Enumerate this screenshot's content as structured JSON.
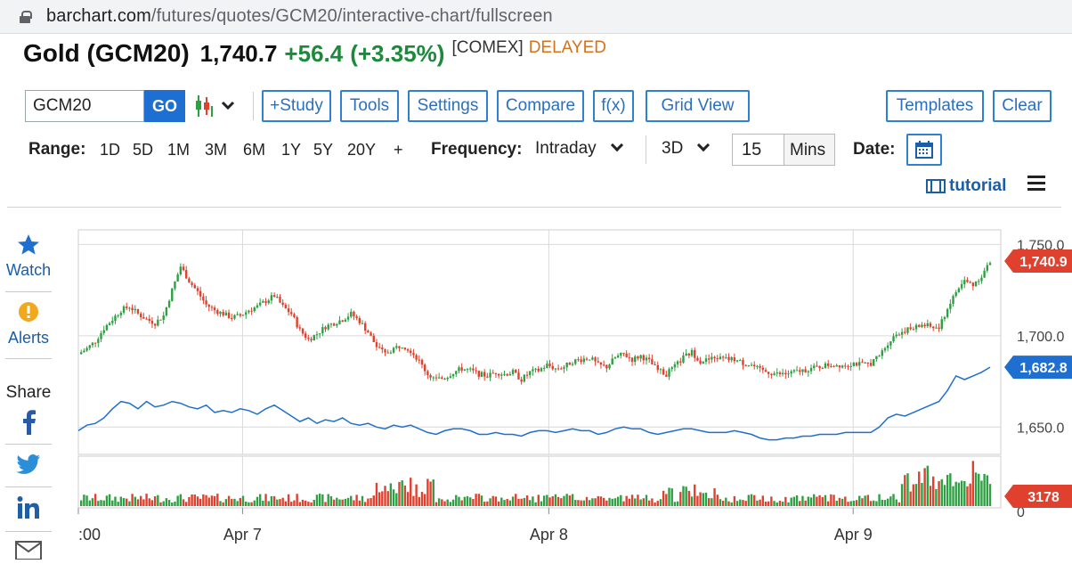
{
  "browser": {
    "url_host": "barchart.com",
    "url_path": "/futures/quotes/GCM20/interactive-chart/fullscreen"
  },
  "header": {
    "title": "Gold (GCM20)",
    "last": "1,740.7",
    "change": "+56.4",
    "percent": "(+3.35%)",
    "exchange": "[COMEX]",
    "status": "DELAYED"
  },
  "toolbar": {
    "symbol_value": "GCM20",
    "go_label": "GO",
    "buttons": [
      "+Study",
      "Tools",
      "Settings",
      "Compare",
      "f(x)",
      "Grid View",
      "Templates",
      "Clear"
    ]
  },
  "rangebar": {
    "range_label": "Range:",
    "ranges": [
      "1D",
      "5D",
      "1M",
      "3M",
      "6M",
      "1Y",
      "5Y",
      "20Y",
      "+"
    ],
    "frequency_label": "Frequency:",
    "frequency_value": "Intraday",
    "period_value": "3D",
    "interval_value": "15",
    "interval_unit": "Mins",
    "date_label": "Date:"
  },
  "tutorial_label": "tutorial",
  "sidebar": {
    "watch_label": "Watch",
    "alerts_label": "Alerts",
    "share_label": "Share"
  },
  "colors": {
    "up": "#2ea043",
    "down": "#e0412e",
    "line": "#1f6fd1",
    "accent": "#2f7fd3"
  },
  "chart_data": {
    "type": "candlestick",
    "x_tick_labels": [
      ":00",
      "Apr 7",
      "Apr 8",
      "Apr 9"
    ],
    "y_tick_labels": [
      "1,750.0",
      "1,700.0",
      "1,650.0"
    ],
    "ylim": [
      1635,
      1758
    ],
    "price_badge": "1,740.9",
    "compare_badge": "1,682.8",
    "volume_badge": "3178",
    "volume_axis_label": "0",
    "price_path": [
      [
        0,
        1690
      ],
      [
        3,
        1693
      ],
      [
        6,
        1697
      ],
      [
        9,
        1704
      ],
      [
        12,
        1709
      ],
      [
        15,
        1714
      ],
      [
        18,
        1716
      ],
      [
        21,
        1712
      ],
      [
        24,
        1709
      ],
      [
        27,
        1707
      ],
      [
        30,
        1711
      ],
      [
        33,
        1725
      ],
      [
        36,
        1738
      ],
      [
        39,
        1730
      ],
      [
        42,
        1724
      ],
      [
        45,
        1717
      ],
      [
        48,
        1714
      ],
      [
        51,
        1712
      ],
      [
        54,
        1710
      ],
      [
        57,
        1711
      ],
      [
        60,
        1714
      ],
      [
        63,
        1716
      ],
      [
        66,
        1719
      ],
      [
        69,
        1722
      ],
      [
        72,
        1716
      ],
      [
        75,
        1712
      ],
      [
        78,
        1703
      ],
      [
        81,
        1698
      ],
      [
        84,
        1701
      ],
      [
        87,
        1705
      ],
      [
        90,
        1707
      ],
      [
        93,
        1709
      ],
      [
        96,
        1712
      ],
      [
        99,
        1708
      ],
      [
        102,
        1702
      ],
      [
        105,
        1694
      ],
      [
        108,
        1690
      ],
      [
        111,
        1693
      ],
      [
        114,
        1695
      ],
      [
        117,
        1692
      ],
      [
        120,
        1686
      ],
      [
        123,
        1679
      ],
      [
        126,
        1676
      ],
      [
        129,
        1677
      ],
      [
        132,
        1680
      ],
      [
        135,
        1682
      ],
      [
        138,
        1681
      ],
      [
        141,
        1679
      ],
      [
        144,
        1678
      ],
      [
        147,
        1680
      ],
      [
        150,
        1679
      ],
      [
        153,
        1680
      ],
      [
        156,
        1676
      ],
      [
        159,
        1680
      ],
      [
        162,
        1681
      ],
      [
        165,
        1684
      ],
      [
        168,
        1682
      ],
      [
        171,
        1683
      ],
      [
        174,
        1686
      ],
      [
        177,
        1687
      ],
      [
        180,
        1688
      ],
      [
        183,
        1684
      ],
      [
        186,
        1683
      ],
      [
        189,
        1688
      ],
      [
        192,
        1690
      ],
      [
        195,
        1687
      ],
      [
        198,
        1689
      ],
      [
        201,
        1686
      ],
      [
        204,
        1681
      ],
      [
        207,
        1679
      ],
      [
        210,
        1683
      ],
      [
        213,
        1688
      ],
      [
        216,
        1691
      ],
      [
        219,
        1686
      ],
      [
        222,
        1687
      ],
      [
        225,
        1688
      ],
      [
        228,
        1687
      ],
      [
        231,
        1687
      ],
      [
        234,
        1685
      ],
      [
        237,
        1684
      ],
      [
        240,
        1681
      ],
      [
        243,
        1680
      ],
      [
        246,
        1679
      ],
      [
        249,
        1679
      ],
      [
        252,
        1680
      ],
      [
        255,
        1681
      ],
      [
        258,
        1682
      ],
      [
        261,
        1683
      ],
      [
        264,
        1684
      ],
      [
        267,
        1684
      ],
      [
        270,
        1684
      ],
      [
        273,
        1685
      ],
      [
        276,
        1684
      ],
      [
        279,
        1685
      ],
      [
        282,
        1689
      ],
      [
        285,
        1696
      ],
      [
        288,
        1701
      ],
      [
        291,
        1703
      ],
      [
        294,
        1704
      ],
      [
        297,
        1706
      ],
      [
        300,
        1705
      ],
      [
        303,
        1704
      ],
      [
        306,
        1715
      ],
      [
        309,
        1724
      ],
      [
        312,
        1730
      ],
      [
        315,
        1728
      ],
      [
        318,
        1733
      ],
      [
        321,
        1740
      ]
    ],
    "compare_path": [
      [
        0,
        1648
      ],
      [
        3,
        1651
      ],
      [
        6,
        1652
      ],
      [
        9,
        1655
      ],
      [
        12,
        1660
      ],
      [
        15,
        1664
      ],
      [
        18,
        1663
      ],
      [
        21,
        1660
      ],
      [
        24,
        1664
      ],
      [
        27,
        1661
      ],
      [
        30,
        1662
      ],
      [
        33,
        1664
      ],
      [
        36,
        1663
      ],
      [
        39,
        1661
      ],
      [
        42,
        1660
      ],
      [
        45,
        1662
      ],
      [
        48,
        1658
      ],
      [
        51,
        1659
      ],
      [
        54,
        1658
      ],
      [
        57,
        1660
      ],
      [
        60,
        1659
      ],
      [
        63,
        1657
      ],
      [
        66,
        1660
      ],
      [
        69,
        1662
      ],
      [
        72,
        1659
      ],
      [
        75,
        1656
      ],
      [
        78,
        1653
      ],
      [
        81,
        1655
      ],
      [
        84,
        1652
      ],
      [
        87,
        1654
      ],
      [
        90,
        1653
      ],
      [
        93,
        1655
      ],
      [
        96,
        1652
      ],
      [
        99,
        1651
      ],
      [
        102,
        1652
      ],
      [
        105,
        1650
      ],
      [
        108,
        1649
      ],
      [
        111,
        1651
      ],
      [
        114,
        1650
      ],
      [
        117,
        1651
      ],
      [
        120,
        1649
      ],
      [
        123,
        1647
      ],
      [
        126,
        1646
      ],
      [
        129,
        1648
      ],
      [
        132,
        1649
      ],
      [
        135,
        1649
      ],
      [
        138,
        1648
      ],
      [
        141,
        1646
      ],
      [
        144,
        1646
      ],
      [
        147,
        1647
      ],
      [
        150,
        1646
      ],
      [
        153,
        1646
      ],
      [
        156,
        1645
      ],
      [
        159,
        1647
      ],
      [
        162,
        1648
      ],
      [
        165,
        1648
      ],
      [
        168,
        1647
      ],
      [
        171,
        1648
      ],
      [
        174,
        1649
      ],
      [
        177,
        1648
      ],
      [
        180,
        1648
      ],
      [
        183,
        1646
      ],
      [
        186,
        1647
      ],
      [
        189,
        1649
      ],
      [
        192,
        1650
      ],
      [
        195,
        1649
      ],
      [
        198,
        1649
      ],
      [
        201,
        1647
      ],
      [
        204,
        1646
      ],
      [
        207,
        1647
      ],
      [
        210,
        1648
      ],
      [
        213,
        1649
      ],
      [
        216,
        1649
      ],
      [
        219,
        1648
      ],
      [
        222,
        1647
      ],
      [
        225,
        1647
      ],
      [
        228,
        1647
      ],
      [
        231,
        1648
      ],
      [
        234,
        1647
      ],
      [
        237,
        1646
      ],
      [
        240,
        1644
      ],
      [
        243,
        1643
      ],
      [
        246,
        1643
      ],
      [
        249,
        1644
      ],
      [
        252,
        1644
      ],
      [
        255,
        1645
      ],
      [
        258,
        1645
      ],
      [
        261,
        1646
      ],
      [
        264,
        1646
      ],
      [
        267,
        1646
      ],
      [
        270,
        1647
      ],
      [
        273,
        1647
      ],
      [
        276,
        1647
      ],
      [
        279,
        1647
      ],
      [
        282,
        1650
      ],
      [
        285,
        1655
      ],
      [
        288,
        1657
      ],
      [
        291,
        1656
      ],
      [
        294,
        1658
      ],
      [
        297,
        1660
      ],
      [
        300,
        1662
      ],
      [
        303,
        1664
      ],
      [
        306,
        1670
      ],
      [
        309,
        1678
      ],
      [
        312,
        1676
      ],
      [
        315,
        1678
      ],
      [
        318,
        1680
      ],
      [
        321,
        1682.8
      ]
    ]
  }
}
